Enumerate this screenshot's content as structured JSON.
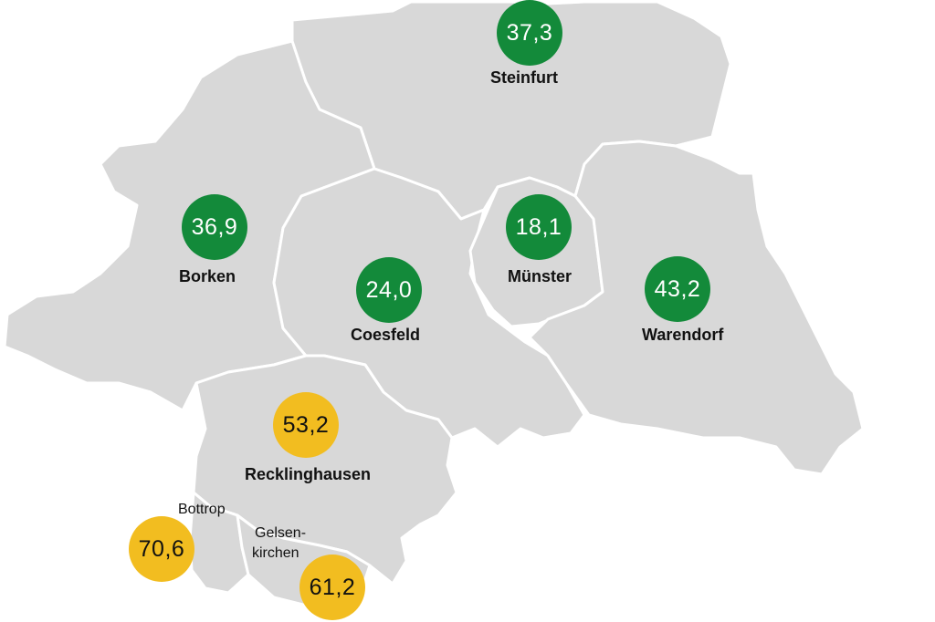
{
  "colors": {
    "region_fill": "#d8d8d8",
    "border": "#ffffff",
    "low_incidence": "#138a3a",
    "high_incidence": "#f2bd20"
  },
  "districts": [
    {
      "id": "steinfurt",
      "name": "Steinfurt",
      "value": "37,3",
      "color": "green"
    },
    {
      "id": "borken",
      "name": "Borken",
      "value": "36,9",
      "color": "green"
    },
    {
      "id": "coesfeld",
      "name": "Coesfeld",
      "value": "24,0",
      "color": "green"
    },
    {
      "id": "muenster",
      "name": "Münster",
      "value": "18,1",
      "color": "green"
    },
    {
      "id": "warendorf",
      "name": "Warendorf",
      "value": "43,2",
      "color": "green"
    },
    {
      "id": "recklinghausen",
      "name": "Recklinghausen",
      "value": "53,2",
      "color": "yellow"
    },
    {
      "id": "bottrop",
      "name": "Bottrop",
      "value": "70,6",
      "color": "yellow"
    },
    {
      "id": "gelsenkirchen",
      "name_line1": "Gelsen-",
      "name_line2": "kirchen",
      "value": "61,2",
      "color": "yellow"
    }
  ]
}
